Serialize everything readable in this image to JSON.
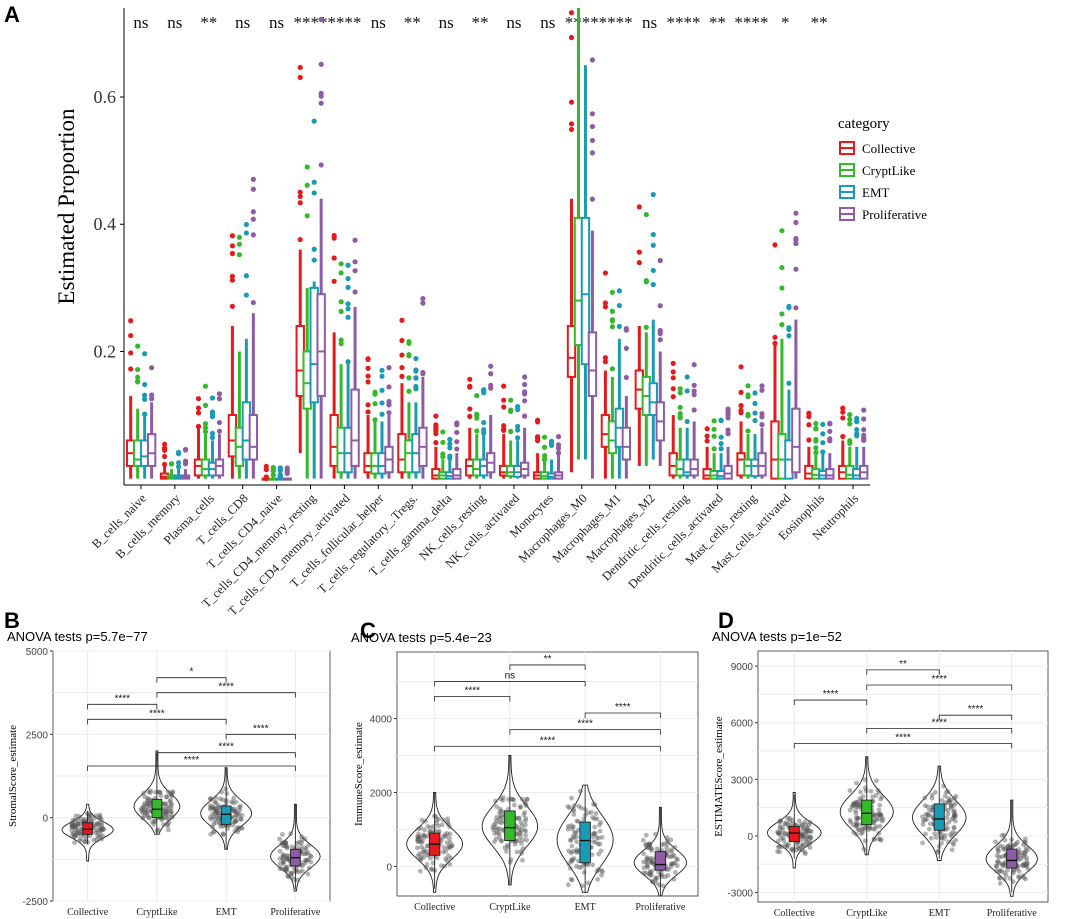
{
  "chart_data": [
    {
      "panel": "A",
      "type": "boxplot",
      "title": "",
      "ylabel": "Estimated Proportion",
      "xlabel": "",
      "ylim": [
        -0.01,
        0.74
      ],
      "yticks": [
        0.2,
        0.4,
        0.6
      ],
      "ytick_labels": [
        "0.2",
        "0.4",
        "0.6"
      ],
      "legend": {
        "title": "category",
        "position": "right",
        "items": [
          {
            "name": "Collective",
            "color": "#E41A1C"
          },
          {
            "name": "CryptLike",
            "color": "#33B92A"
          },
          {
            "name": "EMT",
            "color": "#1A9BB5"
          },
          {
            "name": "Proliferative",
            "color": "#8E5BA7"
          }
        ]
      },
      "categories": [
        "B_cells_naive",
        "B_cells_memory",
        "Plasma_cells",
        "T_cells_CD8",
        "T_cells_CD4_naive",
        "T_cells_CD4_memory_resting",
        "T_cells_CD4_memory_activated",
        "T_cells_follicular_helper",
        "T_cells_regulatory_.Tregs.",
        "T_cells_gamma_delta",
        "NK_cells_resting",
        "NK_cells_activated",
        "Monocytes",
        "Macrophages_M0",
        "Macrophages_M1",
        "Macrophages_M2",
        "Dendritic_cells_resting",
        "Dendritic_cells_activated",
        "Mast_cells_resting",
        "Mast_cells_activated",
        "Eosinophils",
        "Neutrophils"
      ],
      "significance": [
        "ns",
        "ns",
        "**",
        "ns",
        "ns",
        "****",
        "****",
        "ns",
        "**",
        "ns",
        "**",
        "ns",
        "ns",
        "****",
        "****",
        "ns",
        "****",
        "**",
        "****",
        "*",
        "**",
        ""
      ],
      "series": [
        {
          "name": "Collective",
          "boxes": [
            [
              0.0,
              0.02,
              0.04,
              0.06,
              0.13
            ],
            [
              0.0,
              0.0,
              0.003,
              0.008,
              0.02
            ],
            [
              0.0,
              0.005,
              0.02,
              0.03,
              0.08
            ],
            [
              0.0,
              0.035,
              0.06,
              0.1,
              0.24
            ],
            [
              0.0,
              0.0,
              0.0,
              0.0,
              0.0
            ],
            [
              0.04,
              0.13,
              0.17,
              0.24,
              0.36
            ],
            [
              0.0,
              0.02,
              0.05,
              0.1,
              0.23
            ],
            [
              0.0,
              0.01,
              0.02,
              0.04,
              0.1
            ],
            [
              0.0,
              0.01,
              0.03,
              0.07,
              0.15
            ],
            [
              0.0,
              0.0,
              0.005,
              0.015,
              0.05
            ],
            [
              0.0,
              0.005,
              0.02,
              0.03,
              0.08
            ],
            [
              0.0,
              0.005,
              0.01,
              0.02,
              0.07
            ],
            [
              0.0,
              0.0,
              0.005,
              0.01,
              0.04
            ],
            [
              0.01,
              0.16,
              0.19,
              0.24,
              0.44
            ],
            [
              0.0,
              0.05,
              0.07,
              0.1,
              0.17
            ],
            [
              0.02,
              0.11,
              0.14,
              0.17,
              0.24
            ],
            [
              0.0,
              0.005,
              0.02,
              0.04,
              0.1
            ],
            [
              0.0,
              0.0,
              0.005,
              0.015,
              0.05
            ],
            [
              0.0,
              0.005,
              0.03,
              0.04,
              0.09
            ],
            [
              0.0,
              0.0,
              0.03,
              0.09,
              0.21
            ],
            [
              0.0,
              0.0,
              0.008,
              0.02,
              0.05
            ],
            [
              0.0,
              0.0,
              0.01,
              0.02,
              0.06
            ]
          ]
        },
        {
          "name": "CryptLike",
          "boxes": [
            [
              0.0,
              0.02,
              0.03,
              0.06,
              0.11
            ],
            [
              0.0,
              0.0,
              0.002,
              0.005,
              0.015
            ],
            [
              0.0,
              0.005,
              0.015,
              0.03,
              0.07
            ],
            [
              0.0,
              0.02,
              0.05,
              0.08,
              0.2
            ],
            [
              0.0,
              0.0,
              0.0,
              0.0,
              0.0
            ],
            [
              0.0,
              0.11,
              0.15,
              0.2,
              0.3
            ],
            [
              0.0,
              0.01,
              0.04,
              0.08,
              0.18
            ],
            [
              0.0,
              0.008,
              0.02,
              0.04,
              0.09
            ],
            [
              0.0,
              0.01,
              0.04,
              0.06,
              0.12
            ],
            [
              0.0,
              0.0,
              0.005,
              0.01,
              0.03
            ],
            [
              0.0,
              0.005,
              0.015,
              0.03,
              0.07
            ],
            [
              0.0,
              0.004,
              0.01,
              0.02,
              0.06
            ],
            [
              0.0,
              0.0,
              0.004,
              0.01,
              0.03
            ],
            [
              0.03,
              0.21,
              0.28,
              0.41,
              0.74
            ],
            [
              0.0,
              0.04,
              0.06,
              0.09,
              0.16
            ],
            [
              0.02,
              0.1,
              0.13,
              0.16,
              0.23
            ],
            [
              0.0,
              0.005,
              0.015,
              0.03,
              0.08
            ],
            [
              0.0,
              0.0,
              0.005,
              0.012,
              0.04
            ],
            [
              0.0,
              0.005,
              0.02,
              0.03,
              0.07
            ],
            [
              0.0,
              0.0,
              0.03,
              0.07,
              0.22
            ],
            [
              0.0,
              0.0,
              0.006,
              0.015,
              0.04
            ],
            [
              0.0,
              0.0,
              0.006,
              0.02,
              0.05
            ]
          ]
        },
        {
          "name": "EMT",
          "boxes": [
            [
              0.0,
              0.02,
              0.035,
              0.06,
              0.1
            ],
            [
              0.0,
              0.0,
              0.002,
              0.005,
              0.015
            ],
            [
              0.0,
              0.005,
              0.015,
              0.025,
              0.06
            ],
            [
              0.0,
              0.03,
              0.06,
              0.12,
              0.22
            ],
            [
              0.0,
              0.0,
              0.0,
              0.0,
              0.0
            ],
            [
              0.0,
              0.12,
              0.18,
              0.3,
              0.31
            ],
            [
              0.0,
              0.01,
              0.04,
              0.08,
              0.18
            ],
            [
              0.0,
              0.008,
              0.02,
              0.04,
              0.09
            ],
            [
              0.0,
              0.01,
              0.04,
              0.07,
              0.12
            ],
            [
              0.0,
              0.0,
              0.004,
              0.01,
              0.03
            ],
            [
              0.0,
              0.005,
              0.02,
              0.03,
              0.07
            ],
            [
              0.0,
              0.003,
              0.01,
              0.02,
              0.06
            ],
            [
              0.0,
              0.0,
              0.003,
              0.008,
              0.03
            ],
            [
              0.03,
              0.18,
              0.29,
              0.41,
              0.65
            ],
            [
              0.0,
              0.05,
              0.08,
              0.11,
              0.22
            ],
            [
              0.03,
              0.1,
              0.12,
              0.15,
              0.25
            ],
            [
              0.0,
              0.005,
              0.01,
              0.03,
              0.08
            ],
            [
              0.0,
              0.0,
              0.004,
              0.012,
              0.04
            ],
            [
              0.0,
              0.004,
              0.02,
              0.03,
              0.07
            ],
            [
              0.0,
              0.0,
              0.03,
              0.06,
              0.14
            ],
            [
              0.0,
              0.0,
              0.005,
              0.012,
              0.04
            ],
            [
              0.0,
              0.0,
              0.005,
              0.015,
              0.05
            ]
          ]
        },
        {
          "name": "Proliferative",
          "boxes": [
            [
              0.0,
              0.02,
              0.04,
              0.07,
              0.12
            ],
            [
              0.0,
              0.0,
              0.002,
              0.005,
              0.015
            ],
            [
              0.0,
              0.005,
              0.02,
              0.03,
              0.07
            ],
            [
              0.0,
              0.03,
              0.05,
              0.1,
              0.26
            ],
            [
              0.0,
              0.0,
              0.0,
              0.0,
              0.0
            ],
            [
              0.0,
              0.13,
              0.2,
              0.29,
              0.44
            ],
            [
              0.0,
              0.02,
              0.06,
              0.14,
              0.27
            ],
            [
              0.0,
              0.01,
              0.03,
              0.05,
              0.1
            ],
            [
              0.0,
              0.02,
              0.05,
              0.08,
              0.16
            ],
            [
              0.0,
              0.0,
              0.005,
              0.015,
              0.04
            ],
            [
              0.0,
              0.01,
              0.025,
              0.04,
              0.1
            ],
            [
              0.0,
              0.005,
              0.015,
              0.025,
              0.08
            ],
            [
              0.0,
              0.0,
              0.005,
              0.01,
              0.04
            ],
            [
              0.0,
              0.13,
              0.17,
              0.23,
              0.39
            ],
            [
              0.0,
              0.03,
              0.05,
              0.08,
              0.13
            ],
            [
              0.02,
              0.06,
              0.09,
              0.12,
              0.2
            ],
            [
              0.0,
              0.005,
              0.015,
              0.03,
              0.09
            ],
            [
              0.0,
              0.0,
              0.008,
              0.02,
              0.05
            ],
            [
              0.0,
              0.005,
              0.02,
              0.04,
              0.08
            ],
            [
              0.0,
              0.01,
              0.05,
              0.11,
              0.25
            ],
            [
              0.0,
              0.0,
              0.005,
              0.015,
              0.04
            ],
            [
              0.0,
              0.0,
              0.01,
              0.02,
              0.05
            ]
          ]
        }
      ]
    },
    {
      "panel": "B",
      "type": "violin",
      "title": "ANOVA tests p=5.7e−77",
      "ylabel": "StromalScore_estimate",
      "xlabel": "",
      "ylim": [
        -2500,
        5000
      ],
      "yticks": [
        -2500,
        0,
        2500,
        5000
      ],
      "ytick_labels": [
        "-2500",
        "0",
        "2500",
        "5000"
      ],
      "categories": [
        "Collective",
        "CryptLike",
        "EMT",
        "Proliferative"
      ],
      "colors": [
        "#E41A1C",
        "#33B92A",
        "#1A9BB5",
        "#8E5BA7"
      ],
      "boxes": [
        [
          -800,
          -500,
          -350,
          -150,
          200
        ],
        [
          -500,
          0,
          250,
          550,
          1900
        ],
        [
          -950,
          -200,
          100,
          350,
          1500
        ],
        [
          -2150,
          -1450,
          -1200,
          -950,
          400
        ]
      ],
      "violin_range": [
        [
          -1300,
          400
        ],
        [
          -500,
          2000
        ],
        [
          -950,
          1500
        ],
        [
          -2200,
          400
        ]
      ],
      "comparisons": [
        {
          "pair": [
            1,
            2
          ],
          "level": 4200,
          "label": "*"
        },
        {
          "pair": [
            1,
            3
          ],
          "level": 3750,
          "label": "****"
        },
        {
          "pair": [
            0,
            1
          ],
          "level": 3400,
          "label": "****"
        },
        {
          "pair": [
            0,
            2
          ],
          "level": 2950,
          "label": "****"
        },
        {
          "pair": [
            2,
            3
          ],
          "level": 2500,
          "label": "****"
        },
        {
          "pair": [
            1,
            3
          ],
          "level": 1950,
          "label": "****"
        },
        {
          "pair": [
            0,
            3
          ],
          "level": 1550,
          "label": "****"
        }
      ]
    },
    {
      "panel": "C",
      "type": "violin",
      "title": "ANOVA tests p=5.4e−23",
      "ylabel": "ImmuneScore_estimate",
      "xlabel": "",
      "ylim": [
        -800,
        5800
      ],
      "yticks": [
        0,
        2000,
        4000
      ],
      "ytick_labels": [
        "0",
        "2000",
        "4000"
      ],
      "categories": [
        "Collective",
        "CryptLike",
        "EMT",
        "Proliferative"
      ],
      "colors": [
        "#E41A1C",
        "#33B92A",
        "#1A9BB5",
        "#8E5BA7"
      ],
      "boxes": [
        [
          -600,
          300,
          600,
          900,
          2000
        ],
        [
          -500,
          700,
          1050,
          1500,
          3000
        ],
        [
          -700,
          100,
          700,
          1200,
          2200
        ],
        [
          -800,
          -100,
          50,
          400,
          1600
        ]
      ],
      "violin_range": [
        [
          -700,
          2000
        ],
        [
          -500,
          3000
        ],
        [
          -700,
          2200
        ],
        [
          -800,
          1600
        ]
      ],
      "comparisons": [
        {
          "pair": [
            1,
            2
          ],
          "level": 5450,
          "label": "**"
        },
        {
          "pair": [
            0,
            2
          ],
          "level": 5000,
          "label": "ns"
        },
        {
          "pair": [
            0,
            1
          ],
          "level": 4600,
          "label": "****"
        },
        {
          "pair": [
            2,
            3
          ],
          "level": 4150,
          "label": "****"
        },
        {
          "pair": [
            1,
            3
          ],
          "level": 3700,
          "label": "****"
        },
        {
          "pair": [
            0,
            3
          ],
          "level": 3250,
          "label": "****"
        }
      ]
    },
    {
      "panel": "D",
      "type": "violin",
      "title": "ANOVA tests p=1e−52",
      "ylabel": "ESTIMATEScore_estimate",
      "xlabel": "",
      "ylim": [
        -3500,
        9800
      ],
      "yticks": [
        -3000,
        0,
        3000,
        6000,
        9000
      ],
      "ytick_labels": [
        "-3000",
        "0",
        "3000",
        "6000",
        "9000"
      ],
      "categories": [
        "Collective",
        "CryptLike",
        "EMT",
        "Proliferative"
      ],
      "colors": [
        "#E41A1C",
        "#33B92A",
        "#1A9BB5",
        "#8E5BA7"
      ],
      "boxes": [
        [
          -1200,
          -300,
          150,
          500,
          2200
        ],
        [
          -1000,
          600,
          1200,
          1900,
          4200
        ],
        [
          -1200,
          300,
          900,
          1700,
          3700
        ],
        [
          -3000,
          -1700,
          -1300,
          -700,
          1900
        ]
      ],
      "violin_range": [
        [
          -1700,
          2300
        ],
        [
          -1000,
          4200
        ],
        [
          -1300,
          3700
        ],
        [
          -3200,
          1900
        ]
      ],
      "comparisons": [
        {
          "pair": [
            1,
            2
          ],
          "level": 8800,
          "label": "**"
        },
        {
          "pair": [
            1,
            3
          ],
          "level": 8000,
          "label": "****"
        },
        {
          "pair": [
            0,
            1
          ],
          "level": 7200,
          "label": "****"
        },
        {
          "pair": [
            2,
            3
          ],
          "level": 6400,
          "label": "****"
        },
        {
          "pair": [
            1,
            3
          ],
          "level": 5700,
          "label": "****"
        },
        {
          "pair": [
            0,
            3
          ],
          "level": 4900,
          "label": "****"
        }
      ]
    }
  ],
  "panel_labels": [
    "A",
    "B",
    "C",
    "D"
  ]
}
